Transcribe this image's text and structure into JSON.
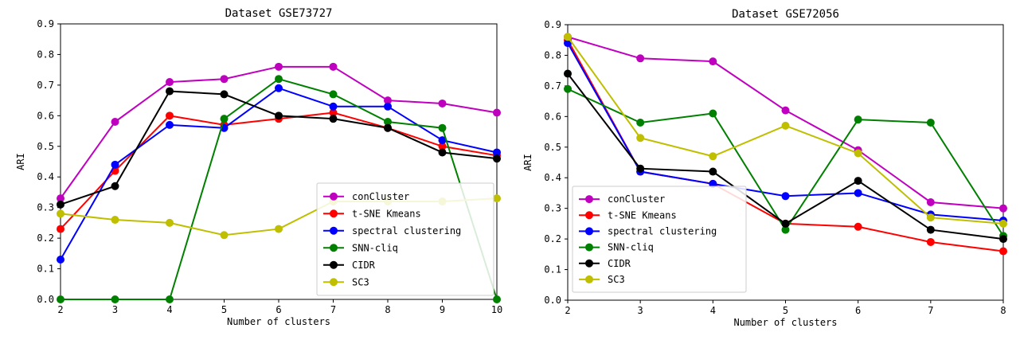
{
  "chart_data": [
    {
      "type": "line",
      "title": "Dataset GSE73727",
      "xlabel": "Number of clusters",
      "ylabel": "ARI",
      "x": [
        2,
        3,
        4,
        5,
        6,
        7,
        8,
        9,
        10
      ],
      "xlim": [
        2,
        10
      ],
      "ylim": [
        0,
        0.9
      ],
      "xticks": [
        "2",
        "3",
        "4",
        "5",
        "6",
        "7",
        "8",
        "9",
        "10"
      ],
      "yticks": [
        "0.0",
        "0.1",
        "0.2",
        "0.3",
        "0.4",
        "0.5",
        "0.6",
        "0.7",
        "0.8",
        "0.9"
      ],
      "grid": false,
      "legend_position": "lower-right",
      "series": [
        {
          "name": "conCluster",
          "color": "#bf00bf",
          "values": [
            0.33,
            0.58,
            0.71,
            0.72,
            0.76,
            0.76,
            0.65,
            0.64,
            0.61
          ]
        },
        {
          "name": "t-SNE Kmeans",
          "color": "#ff0000",
          "values": [
            0.23,
            0.42,
            0.6,
            0.57,
            0.59,
            0.61,
            0.56,
            0.5,
            0.47
          ]
        },
        {
          "name": "spectral clustering",
          "color": "#0000ff",
          "values": [
            0.13,
            0.44,
            0.57,
            0.56,
            0.69,
            0.63,
            0.63,
            0.52,
            0.48
          ]
        },
        {
          "name": "SNN-cliq",
          "color": "#008000",
          "values": [
            0.0,
            0.0,
            0.0,
            0.59,
            0.72,
            0.67,
            0.58,
            0.56,
            0.0
          ]
        },
        {
          "name": "CIDR",
          "color": "#000000",
          "values": [
            0.31,
            0.37,
            0.68,
            0.67,
            0.6,
            0.59,
            0.56,
            0.48,
            0.46
          ]
        },
        {
          "name": "SC3",
          "color": "#bfbf00",
          "values": [
            0.28,
            0.26,
            0.25,
            0.21,
            0.23,
            0.32,
            0.32,
            0.32,
            0.33
          ]
        }
      ]
    },
    {
      "type": "line",
      "title": "Dataset GSE72056",
      "xlabel": "Number of clusters",
      "ylabel": "ARI",
      "x": [
        2,
        3,
        4,
        5,
        6,
        7,
        8
      ],
      "xlim": [
        2,
        8
      ],
      "ylim": [
        0,
        0.9
      ],
      "xticks": [
        "2",
        "3",
        "4",
        "5",
        "6",
        "7",
        "8"
      ],
      "yticks": [
        "0.0",
        "0.1",
        "0.2",
        "0.3",
        "0.4",
        "0.5",
        "0.6",
        "0.7",
        "0.8",
        "0.9"
      ],
      "grid": false,
      "legend_position": "lower-left",
      "series": [
        {
          "name": "conCluster",
          "color": "#bf00bf",
          "values": [
            0.86,
            0.79,
            0.78,
            0.62,
            0.49,
            0.32,
            0.3
          ]
        },
        {
          "name": "t-SNE Kmeans",
          "color": "#ff0000",
          "values": [
            0.85,
            0.42,
            0.38,
            0.25,
            0.24,
            0.19,
            0.16
          ]
        },
        {
          "name": "spectral clustering",
          "color": "#0000ff",
          "values": [
            0.84,
            0.42,
            0.38,
            0.34,
            0.35,
            0.28,
            0.26
          ]
        },
        {
          "name": "SNN-cliq",
          "color": "#008000",
          "values": [
            0.69,
            0.58,
            0.61,
            0.23,
            0.59,
            0.58,
            0.21
          ]
        },
        {
          "name": "CIDR",
          "color": "#000000",
          "values": [
            0.74,
            0.43,
            0.42,
            0.25,
            0.39,
            0.23,
            0.2
          ]
        },
        {
          "name": "SC3",
          "color": "#bfbf00",
          "values": [
            0.86,
            0.53,
            0.47,
            0.57,
            0.48,
            0.27,
            0.25
          ]
        }
      ]
    }
  ]
}
